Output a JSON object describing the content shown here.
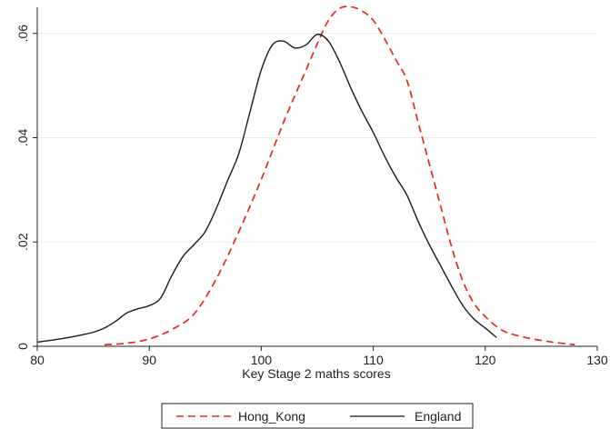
{
  "chart_data": {
    "type": "line",
    "title": "",
    "xlabel": "Key Stage 2 maths scores",
    "ylabel": "",
    "xlim": [
      80,
      130
    ],
    "ylim": [
      0,
      0.065
    ],
    "x_ticks": [
      80,
      90,
      100,
      110,
      120,
      130
    ],
    "x_tick_labels": [
      "80",
      "90",
      "100",
      "110",
      "120",
      "130"
    ],
    "y_ticks": [
      0,
      0.02,
      0.04,
      0.06
    ],
    "y_tick_labels": [
      "0",
      ".02",
      ".04",
      ".06"
    ],
    "grid": "horizontal",
    "legend_position": "bottom",
    "series": [
      {
        "name": "Hong_Kong",
        "color": "#e8281c",
        "dash": "dashed",
        "points": [
          [
            86,
            0.0003
          ],
          [
            88,
            0.0006
          ],
          [
            90,
            0.0014
          ],
          [
            92,
            0.0032
          ],
          [
            94,
            0.0062
          ],
          [
            96,
            0.013
          ],
          [
            98,
            0.022
          ],
          [
            100,
            0.032
          ],
          [
            102,
            0.043
          ],
          [
            104,
            0.053
          ],
          [
            105,
            0.058
          ],
          [
            106,
            0.0625
          ],
          [
            107,
            0.0648
          ],
          [
            108,
            0.0651
          ],
          [
            109,
            0.0643
          ],
          [
            110,
            0.0625
          ],
          [
            111,
            0.059
          ],
          [
            112,
            0.055
          ],
          [
            113,
            0.051
          ],
          [
            114,
            0.043
          ],
          [
            115,
            0.035
          ],
          [
            116,
            0.027
          ],
          [
            117,
            0.019
          ],
          [
            118,
            0.0125
          ],
          [
            119,
            0.0082
          ],
          [
            120,
            0.0057
          ],
          [
            121,
            0.0038
          ],
          [
            122,
            0.0026
          ],
          [
            124,
            0.0015
          ],
          [
            126,
            0.0008
          ],
          [
            128,
            0.0003
          ]
        ]
      },
      {
        "name": "England",
        "color": "#1a1a1a",
        "dash": "solid",
        "points": [
          [
            80,
            0.0008
          ],
          [
            82,
            0.0014
          ],
          [
            84,
            0.0022
          ],
          [
            85,
            0.0027
          ],
          [
            86,
            0.0035
          ],
          [
            87,
            0.0048
          ],
          [
            88,
            0.0064
          ],
          [
            89,
            0.0072
          ],
          [
            90,
            0.0078
          ],
          [
            91,
            0.0092
          ],
          [
            92,
            0.0135
          ],
          [
            93,
            0.0172
          ],
          [
            94,
            0.0195
          ],
          [
            95,
            0.022
          ],
          [
            96,
            0.0265
          ],
          [
            97,
            0.0318
          ],
          [
            98,
            0.037
          ],
          [
            99,
            0.045
          ],
          [
            100,
            0.053
          ],
          [
            101,
            0.0578
          ],
          [
            102,
            0.0585
          ],
          [
            103,
            0.0572
          ],
          [
            104,
            0.0578
          ],
          [
            105,
            0.0598
          ],
          [
            106,
            0.0585
          ],
          [
            107,
            0.0545
          ],
          [
            108,
            0.0495
          ],
          [
            109,
            0.045
          ],
          [
            110,
            0.041
          ],
          [
            111,
            0.0365
          ],
          [
            112,
            0.0325
          ],
          [
            113,
            0.029
          ],
          [
            114,
            0.024
          ],
          [
            115,
            0.0195
          ],
          [
            116,
            0.0155
          ],
          [
            117,
            0.0115
          ],
          [
            118,
            0.0078
          ],
          [
            119,
            0.0052
          ],
          [
            120,
            0.0035
          ],
          [
            121,
            0.0017
          ]
        ]
      }
    ]
  },
  "legend": {
    "items": [
      {
        "label": "Hong_Kong",
        "color": "#e8281c",
        "dash": "dashed"
      },
      {
        "label": "England",
        "color": "#1a1a1a",
        "dash": "solid"
      }
    ]
  }
}
